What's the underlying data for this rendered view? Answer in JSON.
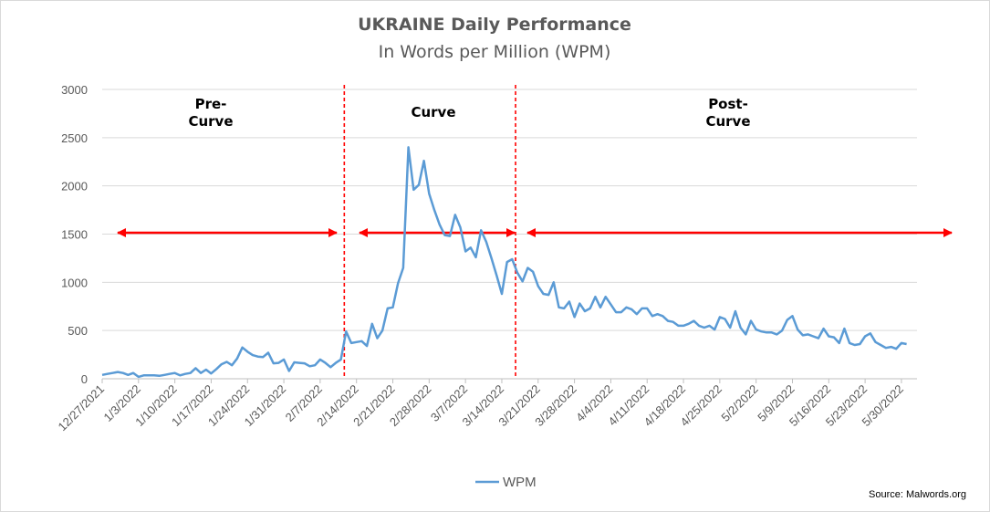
{
  "chart_data": {
    "type": "line",
    "title": "UKRAINE Daily Performance",
    "subtitle": "In Words per Million  (WPM)",
    "ylim": [
      0,
      3000
    ],
    "yticks": [
      0,
      500,
      1000,
      1500,
      2000,
      2500,
      3000
    ],
    "xlim": [
      "12/27/2021",
      "6/2/2022"
    ],
    "xticks": [
      "12/27/2021",
      "1/3/2022",
      "1/10/2022",
      "1/17/2022",
      "1/24/2022",
      "1/31/2022",
      "2/7/2022",
      "2/14/2022",
      "2/21/2022",
      "2/28/2022",
      "3/7/2022",
      "3/14/2022",
      "3/21/2022",
      "3/28/2022",
      "4/4/2022",
      "4/11/2022",
      "4/18/2022",
      "4/25/2022",
      "5/2/2022",
      "5/9/2022",
      "5/16/2022",
      "5/23/2022",
      "5/30/2022"
    ],
    "grid": true,
    "legend_position": "bottom",
    "series": [
      {
        "name": "WPM",
        "color": "#5b9bd5",
        "values": [
          [
            "12/27/2021",
            40
          ],
          [
            "12/28/2021",
            50
          ],
          [
            "12/29/2021",
            60
          ],
          [
            "12/30/2021",
            70
          ],
          [
            "12/31/2021",
            60
          ],
          [
            "1/1/2022",
            40
          ],
          [
            "1/2/2022",
            60
          ],
          [
            "1/3/2022",
            20
          ],
          [
            "1/4/2022",
            35
          ],
          [
            "1/5/2022",
            35
          ],
          [
            "1/6/2022",
            35
          ],
          [
            "1/7/2022",
            30
          ],
          [
            "1/8/2022",
            40
          ],
          [
            "1/9/2022",
            50
          ],
          [
            "1/10/2022",
            60
          ],
          [
            "1/11/2022",
            35
          ],
          [
            "1/12/2022",
            50
          ],
          [
            "1/13/2022",
            60
          ],
          [
            "1/14/2022",
            110
          ],
          [
            "1/15/2022",
            60
          ],
          [
            "1/16/2022",
            95
          ],
          [
            "1/17/2022",
            55
          ],
          [
            "1/18/2022",
            100
          ],
          [
            "1/19/2022",
            150
          ],
          [
            "1/20/2022",
            175
          ],
          [
            "1/21/2022",
            140
          ],
          [
            "1/22/2022",
            210
          ],
          [
            "1/23/2022",
            325
          ],
          [
            "1/24/2022",
            280
          ],
          [
            "1/25/2022",
            245
          ],
          [
            "1/26/2022",
            230
          ],
          [
            "1/27/2022",
            225
          ],
          [
            "1/28/2022",
            270
          ],
          [
            "1/29/2022",
            160
          ],
          [
            "1/30/2022",
            165
          ],
          [
            "1/31/2022",
            200
          ],
          [
            "2/1/2022",
            80
          ],
          [
            "2/2/2022",
            170
          ],
          [
            "2/3/2022",
            165
          ],
          [
            "2/4/2022",
            160
          ],
          [
            "2/5/2022",
            130
          ],
          [
            "2/6/2022",
            140
          ],
          [
            "2/7/2022",
            200
          ],
          [
            "2/8/2022",
            165
          ],
          [
            "2/9/2022",
            120
          ],
          [
            "2/10/2022",
            165
          ],
          [
            "2/11/2022",
            200
          ],
          [
            "2/12/2022",
            490
          ],
          [
            "2/13/2022",
            370
          ],
          [
            "2/14/2022",
            380
          ],
          [
            "2/15/2022",
            390
          ],
          [
            "2/16/2022",
            340
          ],
          [
            "2/17/2022",
            570
          ],
          [
            "2/18/2022",
            420
          ],
          [
            "2/19/2022",
            500
          ],
          [
            "2/20/2022",
            730
          ],
          [
            "2/21/2022",
            740
          ],
          [
            "2/22/2022",
            990
          ],
          [
            "2/23/2022",
            1150
          ],
          [
            "2/24/2022",
            2400
          ],
          [
            "2/25/2022",
            1960
          ],
          [
            "2/26/2022",
            2010
          ],
          [
            "2/27/2022",
            2260
          ],
          [
            "2/28/2022",
            1920
          ],
          [
            "3/1/2022",
            1750
          ],
          [
            "3/2/2022",
            1600
          ],
          [
            "3/3/2022",
            1490
          ],
          [
            "3/4/2022",
            1480
          ],
          [
            "3/5/2022",
            1700
          ],
          [
            "3/6/2022",
            1570
          ],
          [
            "3/7/2022",
            1320
          ],
          [
            "3/8/2022",
            1360
          ],
          [
            "3/9/2022",
            1260
          ],
          [
            "3/10/2022",
            1540
          ],
          [
            "3/11/2022",
            1420
          ],
          [
            "3/12/2022",
            1250
          ],
          [
            "3/13/2022",
            1070
          ],
          [
            "3/14/2022",
            880
          ],
          [
            "3/15/2022",
            1210
          ],
          [
            "3/16/2022",
            1240
          ],
          [
            "3/17/2022",
            1100
          ],
          [
            "3/18/2022",
            1010
          ],
          [
            "3/19/2022",
            1150
          ],
          [
            "3/20/2022",
            1110
          ],
          [
            "3/21/2022",
            960
          ],
          [
            "3/22/2022",
            880
          ],
          [
            "3/23/2022",
            870
          ],
          [
            "3/24/2022",
            1000
          ],
          [
            "3/25/2022",
            740
          ],
          [
            "3/26/2022",
            730
          ],
          [
            "3/27/2022",
            800
          ],
          [
            "3/28/2022",
            640
          ],
          [
            "3/29/2022",
            780
          ],
          [
            "3/30/2022",
            700
          ],
          [
            "3/31/2022",
            730
          ],
          [
            "4/1/2022",
            850
          ],
          [
            "4/2/2022",
            740
          ],
          [
            "4/3/2022",
            850
          ],
          [
            "4/4/2022",
            770
          ],
          [
            "4/5/2022",
            690
          ],
          [
            "4/6/2022",
            690
          ],
          [
            "4/7/2022",
            740
          ],
          [
            "4/8/2022",
            720
          ],
          [
            "4/9/2022",
            670
          ],
          [
            "4/10/2022",
            730
          ],
          [
            "4/11/2022",
            730
          ],
          [
            "4/12/2022",
            650
          ],
          [
            "4/13/2022",
            670
          ],
          [
            "4/14/2022",
            650
          ],
          [
            "4/15/2022",
            600
          ],
          [
            "4/16/2022",
            590
          ],
          [
            "4/17/2022",
            550
          ],
          [
            "4/18/2022",
            550
          ],
          [
            "4/19/2022",
            570
          ],
          [
            "4/20/2022",
            600
          ],
          [
            "4/21/2022",
            550
          ],
          [
            "4/22/2022",
            530
          ],
          [
            "4/23/2022",
            550
          ],
          [
            "4/24/2022",
            510
          ],
          [
            "4/25/2022",
            640
          ],
          [
            "4/26/2022",
            620
          ],
          [
            "4/27/2022",
            530
          ],
          [
            "4/28/2022",
            700
          ],
          [
            "4/29/2022",
            530
          ],
          [
            "4/30/2022",
            460
          ],
          [
            "5/1/2022",
            600
          ],
          [
            "5/2/2022",
            510
          ],
          [
            "5/3/2022",
            490
          ],
          [
            "5/4/2022",
            480
          ],
          [
            "5/5/2022",
            480
          ],
          [
            "5/6/2022",
            460
          ],
          [
            "5/7/2022",
            500
          ],
          [
            "5/8/2022",
            610
          ],
          [
            "5/9/2022",
            650
          ],
          [
            "5/10/2022",
            510
          ],
          [
            "5/11/2022",
            450
          ],
          [
            "5/12/2022",
            460
          ],
          [
            "5/13/2022",
            440
          ],
          [
            "5/14/2022",
            420
          ],
          [
            "5/15/2022",
            520
          ],
          [
            "5/16/2022",
            440
          ],
          [
            "5/17/2022",
            430
          ],
          [
            "5/18/2022",
            370
          ],
          [
            "5/19/2022",
            520
          ],
          [
            "5/20/2022",
            370
          ],
          [
            "5/21/2022",
            350
          ],
          [
            "5/22/2022",
            360
          ],
          [
            "5/23/2022",
            440
          ],
          [
            "5/24/2022",
            470
          ],
          [
            "5/25/2022",
            380
          ],
          [
            "5/26/2022",
            350
          ],
          [
            "5/27/2022",
            320
          ],
          [
            "5/28/2022",
            330
          ],
          [
            "5/29/2022",
            310
          ],
          [
            "5/30/2022",
            370
          ],
          [
            "5/31/2022",
            360
          ]
        ]
      }
    ],
    "annotations": [
      {
        "label": "Pre-\nCurve",
        "color": "#000000"
      },
      {
        "label": "Curve",
        "color": "#000000"
      },
      {
        "label": "Post-\nCurve",
        "color": "#000000"
      }
    ],
    "region_dividers": [
      "2/12/2022",
      "3/17/2022"
    ],
    "divider_color": "#ff0000",
    "arrow_color": "#ff0000",
    "source": "Source: Malwords.org"
  }
}
